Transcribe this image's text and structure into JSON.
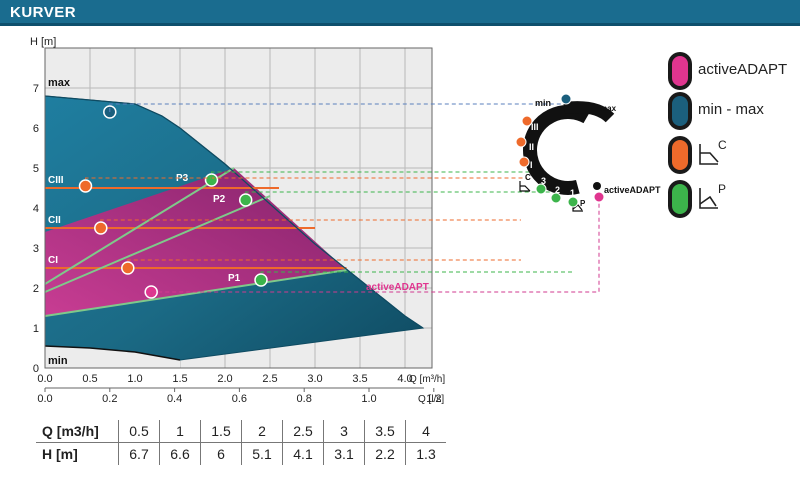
{
  "header": {
    "title": "KURVER"
  },
  "colors": {
    "header": "#1a6c8f",
    "blue_area": "#1b6a85",
    "magenta_area": "#b8297d",
    "orange": "#ee6a2b",
    "green": "#3cb44b",
    "pink": "#e0358f",
    "navy_dot": "#1b5f7d",
    "dash_blue": "#5a7fbd",
    "dash_orange": "#ee6a2b",
    "dash_green": "#3cb44b",
    "dash_pink": "#d03a8f"
  },
  "chart_data": {
    "type": "area",
    "ylabel": "H [m]",
    "xlabel": "Q [m³/h]",
    "xlabel2": "Q [l/s]",
    "xlim": [
      0,
      4.3
    ],
    "ylim": [
      0,
      8
    ],
    "x_ticks": [
      "0.0",
      "0.5",
      "1.0",
      "1.5",
      "2.0",
      "2.5",
      "3.0",
      "3.5",
      "4.0"
    ],
    "x2_ticks": [
      "0.0",
      "0.2",
      "0.4",
      "0.6",
      "0.8",
      "1.0",
      "1.2"
    ],
    "y_ticks": [
      "0",
      "1",
      "2",
      "3",
      "4",
      "5",
      "6",
      "7"
    ],
    "grid": true,
    "max_curve": {
      "name": "max",
      "points": [
        [
          0,
          6.8
        ],
        [
          0.5,
          6.7
        ],
        [
          1,
          6.6
        ],
        [
          1.3,
          6.3
        ],
        [
          1.5,
          6.0
        ],
        [
          2,
          5.1
        ],
        [
          2.5,
          4.1
        ],
        [
          3,
          3.1
        ],
        [
          3.5,
          2.2
        ],
        [
          4,
          1.3
        ],
        [
          4.2,
          1.0
        ]
      ]
    },
    "min_curve": {
      "name": "min",
      "points": [
        [
          0,
          0.55
        ],
        [
          0.5,
          0.5
        ],
        [
          1,
          0.4
        ],
        [
          1.5,
          0.2
        ]
      ]
    },
    "adapt_polygon": [
      [
        0,
        1.3
      ],
      [
        0,
        3.4
      ],
      [
        2.1,
        5.0
      ],
      [
        3.35,
        2.45
      ],
      [
        0,
        1.3
      ]
    ],
    "lines": [
      {
        "name": "CIII",
        "type": "constant",
        "y": 4.5,
        "x_end": 2.6
      },
      {
        "name": "CII",
        "type": "constant",
        "y": 3.5,
        "x_end": 3.0
      },
      {
        "name": "CI",
        "type": "constant",
        "y": 2.5,
        "x_end": 3.35
      },
      {
        "name": "P3",
        "type": "proportional",
        "from": [
          0,
          2.1
        ],
        "to": [
          2.1,
          5.0
        ]
      },
      {
        "name": "P2",
        "type": "proportional",
        "from": [
          0,
          1.9
        ],
        "to": [
          2.5,
          4.3
        ]
      },
      {
        "name": "P1",
        "type": "proportional",
        "from": [
          0,
          1.3
        ],
        "to": [
          3.35,
          2.45
        ]
      }
    ],
    "points": [
      {
        "label": "",
        "x": 0.72,
        "y": 6.4,
        "color": "navy"
      },
      {
        "label": "",
        "x": 0.45,
        "y": 4.55,
        "color": "orange"
      },
      {
        "label": "",
        "x": 0.62,
        "y": 3.5,
        "color": "orange"
      },
      {
        "label": "",
        "x": 0.92,
        "y": 2.5,
        "color": "orange"
      },
      {
        "label": "P3",
        "x": 1.85,
        "y": 4.7,
        "color": "green"
      },
      {
        "label": "P2",
        "x": 2.23,
        "y": 4.2,
        "color": "green"
      },
      {
        "label": "P1",
        "x": 2.4,
        "y": 2.2,
        "color": "green"
      },
      {
        "label": "",
        "x": 1.18,
        "y": 1.9,
        "color": "pink"
      }
    ],
    "labels": {
      "max": "max",
      "min": "min",
      "CIII": "CIII",
      "CII": "CII",
      "CI": "CI",
      "P3": "P3",
      "P2": "P2",
      "P1": "P1",
      "activeADAPT": "activeADAPT"
    }
  },
  "dial": {
    "min": "min",
    "max": "max",
    "activeADAPT": "activeADAPT",
    "roman": [
      "III",
      "II",
      "I"
    ],
    "numbers": [
      "3",
      "2",
      "1"
    ],
    "c_letter": "C",
    "p_letter": "P"
  },
  "legend": [
    {
      "label": "activeADAPT",
      "color": "#e0358f"
    },
    {
      "label": "min - max",
      "color": "#1b5f7d"
    },
    {
      "label": "",
      "sup": "C",
      "color": "#ee6a2b"
    },
    {
      "label": "",
      "sup": "P",
      "color": "#3cb44b"
    }
  ],
  "table": {
    "q_header": "Q [m3/h]",
    "h_header": "H [m]",
    "q": [
      "0.5",
      "1",
      "1.5",
      "2",
      "2.5",
      "3",
      "3.5",
      "4"
    ],
    "h": [
      "6.7",
      "6.6",
      "6",
      "5.1",
      "4.1",
      "3.1",
      "2.2",
      "1.3"
    ]
  }
}
